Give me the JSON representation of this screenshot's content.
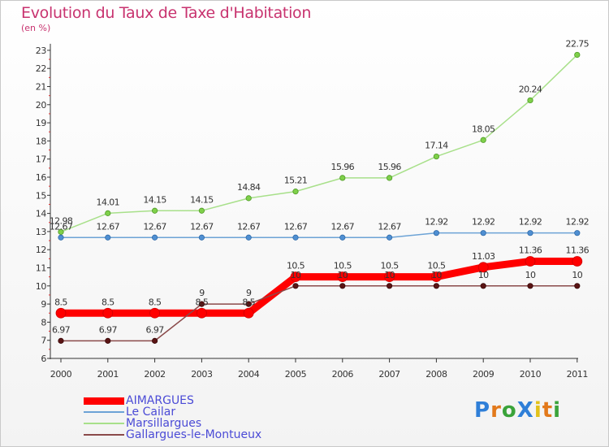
{
  "title": "Evolution du Taux de Taxe d'Habitation",
  "subtitle": "(en %)",
  "logo_text": "ProXiti",
  "chart_data": {
    "type": "line",
    "title": "Evolution du Taux de Taxe d'Habitation",
    "ylabel": "(en %)",
    "xlabel": "",
    "x": [
      "2000",
      "2001",
      "2002",
      "2003",
      "2004",
      "2005",
      "2006",
      "2007",
      "2008",
      "2009",
      "2010",
      "2011"
    ],
    "ylim": [
      6,
      23
    ],
    "yticks": [
      6,
      7,
      8,
      9,
      10,
      11,
      12,
      13,
      14,
      15,
      16,
      17,
      18,
      19,
      20,
      21,
      22,
      23
    ],
    "grid": false,
    "legend_position": "bottom-left",
    "series": [
      {
        "name": "AIMARGUES",
        "color": "#ff0000",
        "values": [
          8.5,
          8.5,
          8.5,
          8.5,
          8.5,
          10.5,
          10.5,
          10.5,
          10.5,
          11.03,
          11.36,
          11.36
        ],
        "labels": [
          "8.5",
          "8.5",
          "8.5",
          "8.5",
          "8.5",
          "10.5",
          "10.5",
          "10.5",
          "10.5",
          "11.03",
          "11.36",
          "11.36"
        ]
      },
      {
        "name": "Le Cailar",
        "color": "#6ca3d6",
        "values": [
          12.67,
          12.67,
          12.67,
          12.67,
          12.67,
          12.67,
          12.67,
          12.67,
          12.92,
          12.92,
          12.92,
          12.92
        ],
        "labels": [
          "12.67",
          "12.67",
          "12.67",
          "12.67",
          "12.67",
          "12.67",
          "12.67",
          "12.67",
          "12.92",
          "12.92",
          "12.92",
          "12.92"
        ]
      },
      {
        "name": "Marsillargues",
        "color": "#a8e08a",
        "values": [
          12.98,
          14.01,
          14.15,
          14.15,
          14.84,
          15.21,
          15.96,
          15.96,
          17.14,
          18.05,
          20.24,
          22.75
        ],
        "labels": [
          "12.98",
          "14.01",
          "14.15",
          "14.15",
          "14.84",
          "15.21",
          "15.96",
          "15.96",
          "17.14",
          "18.05",
          "20.24",
          "22.75"
        ]
      },
      {
        "name": "Gallargues-le-Montueux",
        "color": "#8a4a4a",
        "values": [
          6.97,
          6.97,
          6.97,
          9,
          9,
          10,
          10,
          10,
          10,
          10,
          10,
          10
        ],
        "labels": [
          "6.97",
          "6.97",
          "6.97",
          "9",
          "9",
          "10",
          "10",
          "10",
          "10",
          "10",
          "10",
          "10"
        ]
      }
    ]
  }
}
